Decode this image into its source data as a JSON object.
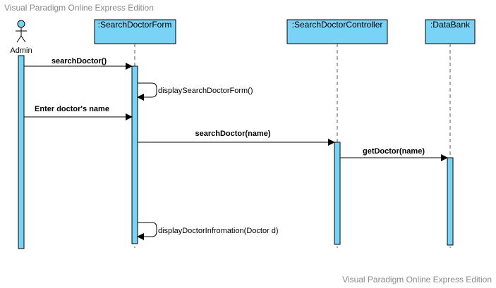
{
  "watermarks": {
    "top": "Visual Paradigm Online Express Edition",
    "bottom": "Visual Paradigm Online Express Edition"
  },
  "actor": {
    "label": "Admin"
  },
  "lifelines": [
    {
      "id": "form",
      "label": ":SearchDoctorForm"
    },
    {
      "id": "controller",
      "label": ":SearchDoctorController"
    },
    {
      "id": "databank",
      "label": ":DataBank"
    }
  ],
  "messages": [
    {
      "label": "searchDoctor()",
      "from": "Admin",
      "to": ":SearchDoctorForm"
    },
    {
      "label": "displaySearchDoctorForm()",
      "from": ":SearchDoctorForm",
      "to": ":SearchDoctorForm"
    },
    {
      "label": "Enter doctor's name",
      "from": "Admin",
      "to": ":SearchDoctorForm"
    },
    {
      "label": "searchDoctor(name)",
      "from": ":SearchDoctorForm",
      "to": ":SearchDoctorController"
    },
    {
      "label": "getDoctor(name)",
      "from": ":SearchDoctorController",
      "to": ":DataBank"
    },
    {
      "label": "displayDoctorInfromation(Doctor d)",
      "from": ":SearchDoctorForm",
      "to": ":SearchDoctorForm"
    }
  ],
  "colors": {
    "fill": "#78d3f6",
    "stroke": "#000000",
    "watermark": "#8a8a8a"
  }
}
